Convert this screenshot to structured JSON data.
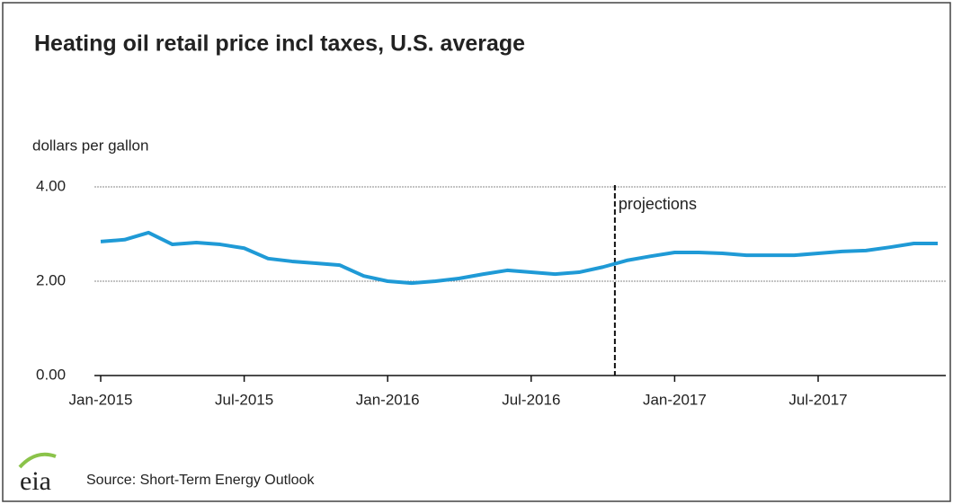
{
  "chart_data": {
    "type": "line",
    "title": "Heating oil retail price incl taxes, U.S. average",
    "y_axis_label": "dollars per gallon",
    "source": "Source: Short-Term Energy Outlook",
    "logo": "eia",
    "annotation": {
      "text": "projections",
      "x": 21.5
    },
    "categories": [
      "Jan-2015",
      null,
      null,
      null,
      null,
      null,
      "Jul-2015",
      null,
      null,
      null,
      null,
      null,
      "Jan-2016",
      null,
      null,
      null,
      null,
      null,
      "Jul-2016",
      null,
      null,
      null,
      null,
      null,
      "Jan-2017",
      null,
      null,
      null,
      null,
      null,
      "Jul-2017",
      null,
      null,
      null,
      null,
      null
    ],
    "series": [
      {
        "color": "#1f9ad6",
        "values": [
          2.84,
          2.88,
          3.03,
          2.78,
          2.82,
          2.78,
          2.7,
          2.48,
          2.42,
          2.38,
          2.34,
          2.11,
          2.0,
          1.96,
          2.0,
          2.06,
          2.15,
          2.23,
          2.19,
          2.15,
          2.19,
          2.3,
          2.44,
          2.53,
          2.61,
          2.61,
          2.59,
          2.55,
          2.55,
          2.55,
          2.59,
          2.63,
          2.65,
          2.72,
          2.8,
          2.8
        ]
      }
    ],
    "ylim": [
      0,
      4
    ],
    "yticks": [
      {
        "value": 0,
        "label": "0.00"
      },
      {
        "value": 2,
        "label": "2.00"
      },
      {
        "value": 4,
        "label": "4.00"
      }
    ],
    "grid": true
  }
}
